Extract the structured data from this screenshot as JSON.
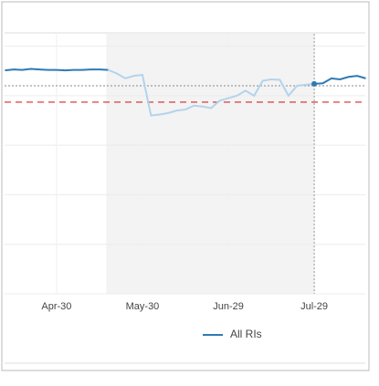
{
  "chart_data": {
    "type": "line",
    "categories": [
      null,
      null,
      null,
      null,
      null,
      null,
      "Apr-30",
      null,
      null,
      null,
      null,
      null,
      null,
      null,
      null,
      null,
      "May-30",
      null,
      null,
      null,
      null,
      null,
      null,
      null,
      null,
      null,
      "Jun-29",
      null,
      null,
      null,
      null,
      null,
      null,
      null,
      null,
      null,
      "Jul-29",
      null,
      null,
      null,
      null,
      null,
      null
    ],
    "series": [
      {
        "name": "All RIs",
        "color": "#2e7ab6",
        "highlight_color": "#b3d3ec",
        "values": [
          4.51,
          4.53,
          4.52,
          4.54,
          4.53,
          4.52,
          4.52,
          4.51,
          4.52,
          4.52,
          4.53,
          4.53,
          4.52,
          4.45,
          4.35,
          4.4,
          4.42,
          3.6,
          3.62,
          3.65,
          3.7,
          3.72,
          3.8,
          3.78,
          3.75,
          3.9,
          3.95,
          4.0,
          4.1,
          4.0,
          4.3,
          4.33,
          4.32,
          4.0,
          4.2,
          4.22,
          4.24,
          4.25,
          4.35,
          4.33,
          4.38,
          4.4,
          4.35
        ]
      }
    ],
    "ylim": [
      0,
      5.25
    ],
    "yticks": [
      0,
      1,
      2,
      3,
      4,
      5
    ],
    "grid": true,
    "shaded_range": [
      12,
      36
    ],
    "marker_index": 36,
    "reference_lines": [
      {
        "value": 4.2,
        "color": "#888888",
        "style": "dotted"
      },
      {
        "value": 3.87,
        "color": "#d62728",
        "style": "dashed"
      }
    ]
  }
}
